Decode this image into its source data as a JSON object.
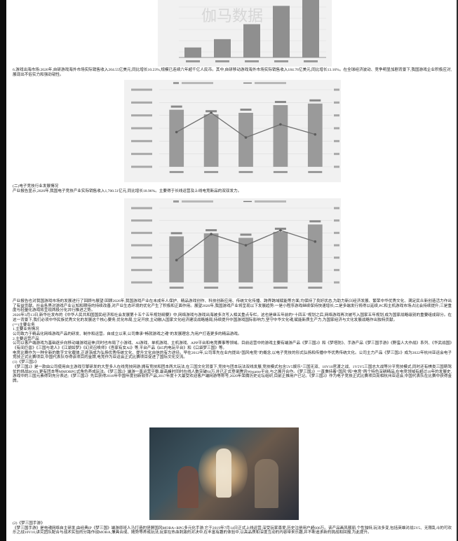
{
  "figure1": {
    "watermark": "伽马数据",
    "values": [
      12,
      22,
      40,
      62,
      80
    ]
  },
  "para_overseas": "6.游戏出海市场:2026年,自研游戏海外市场实际销售收入204.55亿美元,同比增长10.23%,规模已连续六年超千亿人民币。其中,自研移动游戏海外市场实际销售收入184.76亿美元,同比增长13.16%。在全球经济波动、竞争明显加剧背景下,我国游戏企业积极应对,展现出不俗实力和强劲韧性。",
  "figure2": {
    "bars": [
      74,
      68,
      70,
      80,
      82
    ],
    "line": [
      0.55,
      0.3,
      0.62,
      0.45,
      0.58
    ]
  },
  "section2_heading": "(二)电子竞技行业发展情况",
  "para_esports": "产业报告显示,2026年,我国电子竞技产业实际销售收入1,700.51亿元,同比增长18.96%。主要得于长线运营及上线电竞新品的双双发力。",
  "figure3": {
    "bars": [
      62,
      66,
      60,
      68,
      78
    ],
    "line": [
      0.7,
      0.35,
      0.5,
      0.3,
      0.45
    ]
  },
  "para_policy1": "产业报告也对我国游戏市场的发展进行了回顾与展望:回顾2026年,我国游戏产业在未成年人保护、精品游戏创作、科技创新应用、传统文化传播、跨界跨域赋能等方面,均保持了良好状态,为助力新兴经济发展、繁荣中华优秀文化、满足民众新创造活力作出了有益贡献。社会各界对游戏产业认知和期待的持续改善,对产业生态环境的优化产生了积极和正面作用。展望2026年,我国游戏产业将呈现以下发展趋势:一是小程序游戏继续保持快速增长;二是多端发行将得以延续,PC和主机游戏市场占比会持续提升;三是重度与轻量化游戏将呈现两极分化并行推进之势。",
  "para_policy2": "2026年3月13日,新华社发布的《中华人民共和国国民经济和社会发展第十五个五年规划纲要》中,网络游戏与游戏出海被多次写入相关重点专栏。这也是继五年前的“十四五”规划之后,网络游戏再次被写入国家五年规划,成为国家战略级别的重要组成部分。在这一背景下,我们必须中华民族优秀文化的发展这个核心要务,优化布局,立足开放,主动融入国家文化经济建设战略格局,持续提升中国游戏国际影响力,坚守中华文化魂,赋能新质生产力,为国家经济与文化发展战略作出独特贡献。",
  "section3_heading": "(一)主要业务",
  "section3_1": "1.主要业务情况",
  "section3_1_body": "公司致力于精品化网络游戏产品的研发、制作和运营。自成立以来,公司秉承“畅就游戏之魂”的发展理念,为用户打造更多的精品游戏。",
  "section3_2": "2.主要运营产品",
  "para_products": "公司以客户端游戏为基础逐步向移动端游戏延伸,同时也布局了小游戏、AI游戏、单机游戏、主机游戏、APP平台和电竞赛事等领域。目前运营中的游戏主要有端游产品《梦三国2》和《梦塔防》、手游产品《梦三国手游》《野蛮人大作战》系列、《华武战国》《有间巨兽》《三国与诡人》《江湖如梦》《幻灵召唤师》《吾家有女AI》等,平台产品《H5内电玩平台》和《口袋梦三国》等。",
  "para_esport_business": "电竞比赛作为一种全新的数字文化载体,正逐渐成为弘扬优秀传统文化、提升文化自信的有力途径。早在2012年,公司率先在业内提出“国风电竞”的概念,以电子竞技的形式弘扬和传播中华优秀传统文化。公司主力产品《梦三国2》成为2022年杭州亚运会电子竞技正式比赛项目,中国代表队夺得该项目的金牌,电竞作为亚运会正式比赛项目促进了国际文化交流。",
  "item1_heading": "(1)《梦三国2》",
  "item1_body": "《梦三国2》是一款由公司使用自主游戏引擎研发的大型多人在线竞技网游,拥有竞技和团本两大玩法,在三国文化背景下,竞技与团本玩法双线发展,竞技模式包含5V5娱乐“三国无双、10V10官渡之战、1V5V5三国志大战等分平竞技模式,同时还有棋类三国萌驾仗的挑战BOSS,更有团本等MMORPG式角色养成玩法。《梦三国2》端游一直运营平稳,最高峰时同时在线人数突破64万,并已正式登录腾讯Wegame平台,与之展开合作。《梦三国2》一直秉持着“国风”和“电竞”两个特色深耕精品,在电竞领域有超过10年的发展史,游戏中的三国元素得到充分表达;《梦三国2》先后获得2016年中国年度创新软件产品,2017年度十大最受欢迎客户端网游等称号,2020年荣膺历史论坛组织,目前正推用户已记。《梦三国2》作为电子竞技正式比赛项目亮相杭州亚运会,中国代表队在比赛中获得金牌。",
  "item2_heading": "(2)《梦三国手游》",
  "item2_body": "《梦三国手游》是电魂网络自主研发,由经典IP《梦三国》端游原班人马打造的竖屏国风MOBA+RPG多元化手游,它于2019年7月14日正式上线运营,深受玩家喜爱,历史注册用户超600万。该产品画风靓丽,个性独特,玩法多变,包括英雄对战5V5、无限乱斗的可欢乐之战10V10,讲究团队配合与战术实验的分路作战MOBA,兼具合成、随势等养成玩法,玩家在热血刺激的对决中,在丰富有趣的体验中,以高品质和深度互动的内容带来乐趣,并不断追求新的挑战和回报,为此提升。"
}
